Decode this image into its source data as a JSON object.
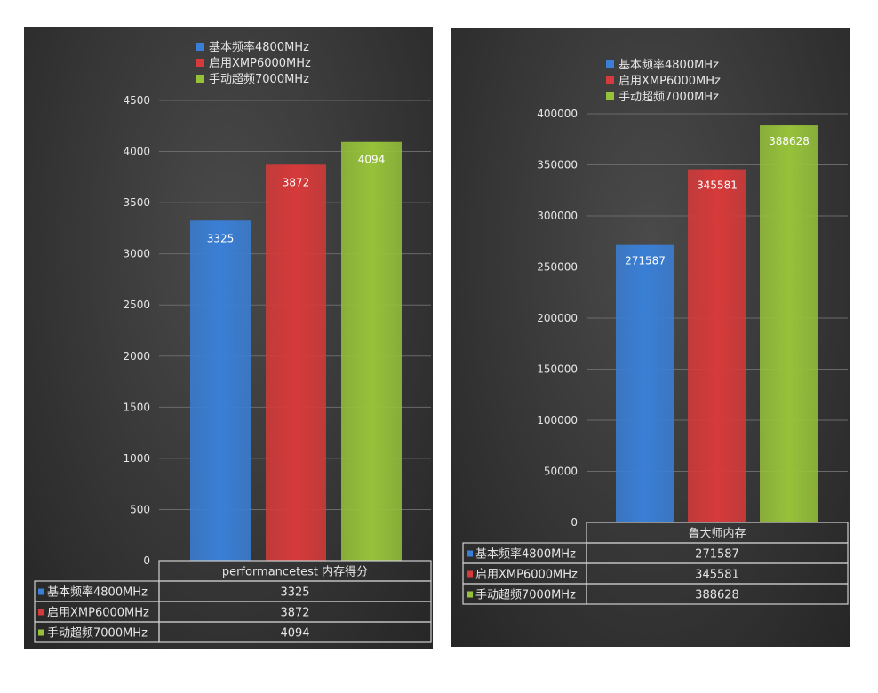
{
  "colors": {
    "blue": "#3a7fd6",
    "red": "#d63a3a",
    "green": "#96c23a",
    "text": "#e6e6e6",
    "grid": "#6a6a6a",
    "table_border": "#cfcfcf"
  },
  "chart_data": [
    {
      "type": "bar",
      "categories": [
        "performancetest 内存得分"
      ],
      "series": [
        {
          "name": "基本频率4800MHz",
          "values": [
            3325
          ]
        },
        {
          "name": "启用XMP6000MHz",
          "values": [
            3872
          ]
        },
        {
          "name": "手动超频7000MHz",
          "values": [
            4094
          ]
        }
      ],
      "yticks": [
        0,
        500,
        1000,
        1500,
        2000,
        2500,
        3000,
        3500,
        4000,
        4500
      ],
      "ylim": [
        0,
        4500
      ],
      "grid": true,
      "legend_position": "top-center",
      "data_table": true
    },
    {
      "type": "bar",
      "categories": [
        "鲁大师内存"
      ],
      "series": [
        {
          "name": "基本频率4800MHz",
          "values": [
            271587
          ]
        },
        {
          "name": "启用XMP6000MHz",
          "values": [
            345581
          ]
        },
        {
          "name": "手动超频7000MHz",
          "values": [
            388628
          ]
        }
      ],
      "yticks": [
        0,
        50000,
        100000,
        150000,
        200000,
        250000,
        300000,
        350000,
        400000
      ],
      "ylim": [
        0,
        400000
      ],
      "grid": true,
      "legend_position": "top-center",
      "data_table": true
    }
  ]
}
